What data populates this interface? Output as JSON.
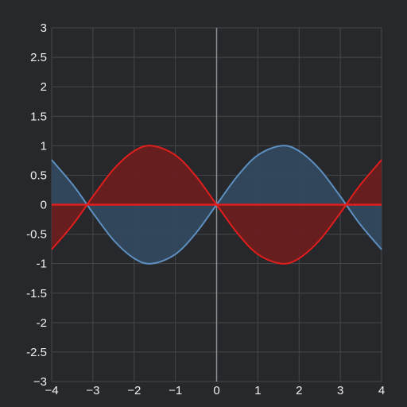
{
  "chart_data": {
    "type": "area",
    "xlim": [
      -4,
      4
    ],
    "ylim": [
      -3,
      3
    ],
    "x_ticks": [
      -4,
      -3,
      -2,
      -1,
      0,
      1,
      2,
      3,
      4
    ],
    "y_ticks": [
      3,
      2.5,
      2,
      1.5,
      1,
      0.5,
      0,
      -0.5,
      -1,
      -1.5,
      -2,
      -2.5,
      -3
    ],
    "x_tick_labels": [
      "−4",
      "−3",
      "−2",
      "−1",
      "0",
      "1",
      "2",
      "3",
      "4"
    ],
    "y_tick_labels": [
      "3",
      "2.5",
      "2",
      "1.5",
      "1",
      "0.5",
      "0",
      "-0.5",
      "-1",
      "-1.5",
      "-2",
      "-2.5",
      "−3"
    ],
    "grid": true,
    "fill_baseline": 0,
    "series": [
      {
        "color": "#5d8fc0",
        "fill_color": "#33495f",
        "x": [
          -4,
          -3.5,
          -3.14,
          -3,
          -2.5,
          -2,
          -1.57,
          -1,
          -0.5,
          0,
          0.5,
          1,
          1.57,
          2,
          2.5,
          3,
          3.14,
          3.5,
          4
        ],
        "y": [
          0.76,
          0.35,
          0,
          -0.14,
          -0.6,
          -0.91,
          -1,
          -0.84,
          -0.48,
          0,
          0.48,
          0.84,
          1,
          0.91,
          0.6,
          0.14,
          0,
          -0.35,
          -0.76
        ]
      },
      {
        "color": "#e01e1e",
        "fill_color": "#6e1d1e",
        "x": [
          -4,
          -3.5,
          -3.14,
          -3,
          -2.5,
          -2,
          -1.57,
          -1,
          -0.5,
          0,
          0.5,
          1,
          1.57,
          2,
          2.5,
          3,
          3.14,
          3.5,
          4
        ],
        "y": [
          -0.76,
          -0.35,
          0,
          0.14,
          0.6,
          0.91,
          1,
          0.84,
          0.48,
          0,
          -0.48,
          -0.84,
          -1,
          -0.91,
          -0.6,
          -0.14,
          0,
          0.35,
          0.76
        ]
      }
    ]
  }
}
